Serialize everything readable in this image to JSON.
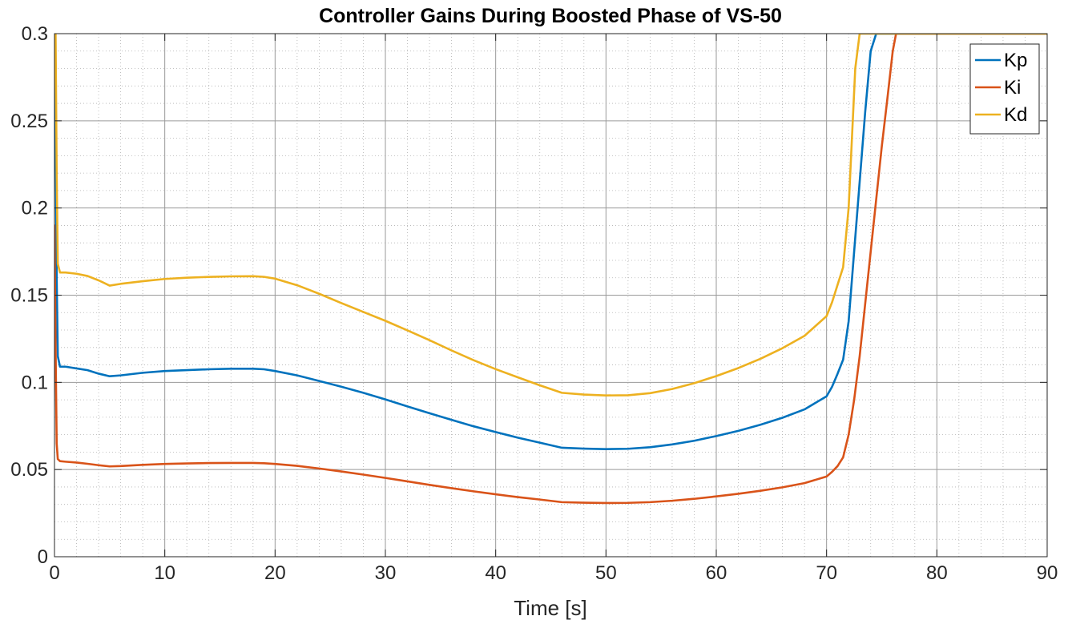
{
  "chart_data": {
    "type": "line",
    "title": "Controller Gains During Boosted Phase of VS-50",
    "xlabel": "Time [s]",
    "ylabel": "",
    "xlim": [
      0,
      90
    ],
    "ylim": [
      0,
      0.3
    ],
    "xticks": [
      0,
      10,
      20,
      30,
      40,
      50,
      60,
      70,
      80,
      90
    ],
    "xtick_labels": [
      "0",
      "10",
      "20",
      "30",
      "40",
      "50",
      "60",
      "70",
      "80",
      "90"
    ],
    "yticks": [
      0,
      0.05,
      0.1,
      0.15,
      0.2,
      0.25,
      0.3
    ],
    "ytick_labels": [
      "0",
      "0.05",
      "0.1",
      "0.15",
      "0.2",
      "0.25",
      "0.3"
    ],
    "grid": "major and minor",
    "legend_position": "top-right",
    "series": [
      {
        "name": "Kp",
        "color": "#0072BD",
        "x": [
          0,
          0.1,
          0.2,
          0.3,
          0.5,
          1,
          2,
          3,
          4,
          5,
          6,
          8,
          10,
          12,
          14,
          16,
          18,
          19,
          20,
          22,
          24,
          26,
          28,
          30,
          32,
          34,
          36,
          38,
          40,
          42,
          44,
          46,
          48,
          50,
          52,
          54,
          56,
          58,
          60,
          62,
          64,
          66,
          68,
          70,
          70.5,
          71,
          71.5,
          72,
          72.5,
          73,
          73.5,
          74,
          74.5,
          75,
          76,
          80,
          90
        ],
        "y": [
          0.3,
          0.25,
          0.16,
          0.115,
          0.109,
          0.109,
          0.108,
          0.107,
          0.105,
          0.1035,
          0.104,
          0.1055,
          0.1065,
          0.107,
          0.1075,
          0.1078,
          0.1078,
          0.1075,
          0.1065,
          0.104,
          0.1008,
          0.0975,
          0.094,
          0.0902,
          0.0862,
          0.0823,
          0.0785,
          0.0748,
          0.0715,
          0.0683,
          0.0654,
          0.0625,
          0.062,
          0.0617,
          0.0619,
          0.0628,
          0.0644,
          0.0665,
          0.0692,
          0.0722,
          0.0757,
          0.0797,
          0.0845,
          0.092,
          0.0975,
          0.105,
          0.113,
          0.135,
          0.175,
          0.215,
          0.255,
          0.29,
          0.3,
          0.3,
          0.3,
          0.3,
          0.3
        ]
      },
      {
        "name": "Ki",
        "color": "#D95319",
        "x": [
          0,
          0.1,
          0.2,
          0.3,
          0.5,
          1,
          2,
          3,
          4,
          5,
          6,
          8,
          10,
          12,
          14,
          16,
          18,
          19,
          20,
          22,
          24,
          26,
          28,
          30,
          32,
          34,
          36,
          38,
          40,
          42,
          44,
          46,
          48,
          50,
          52,
          54,
          56,
          58,
          60,
          62,
          64,
          66,
          68,
          70,
          70.5,
          71,
          71.5,
          72,
          72.5,
          73,
          73.5,
          74,
          74.5,
          75,
          75.5,
          76,
          76.3,
          80,
          90
        ],
        "y": [
          0.19,
          0.12,
          0.065,
          0.056,
          0.0548,
          0.0545,
          0.054,
          0.0533,
          0.0525,
          0.0518,
          0.052,
          0.0527,
          0.0532,
          0.0535,
          0.0537,
          0.0538,
          0.0538,
          0.0536,
          0.0532,
          0.0521,
          0.0506,
          0.0489,
          0.0471,
          0.0452,
          0.0432,
          0.0412,
          0.0393,
          0.0375,
          0.0358,
          0.0342,
          0.0328,
          0.0313,
          0.031,
          0.0308,
          0.0309,
          0.0313,
          0.0321,
          0.0332,
          0.0346,
          0.0361,
          0.0378,
          0.0398,
          0.0422,
          0.046,
          0.0487,
          0.052,
          0.057,
          0.07,
          0.09,
          0.115,
          0.145,
          0.175,
          0.205,
          0.235,
          0.262,
          0.29,
          0.3,
          0.3,
          0.3
        ]
      },
      {
        "name": "Kd",
        "color": "#EDB120",
        "x": [
          0,
          0.1,
          0.2,
          0.3,
          0.5,
          1,
          2,
          3,
          4,
          5,
          6,
          8,
          10,
          12,
          14,
          16,
          18,
          19,
          20,
          22,
          24,
          26,
          28,
          30,
          32,
          34,
          36,
          38,
          40,
          42,
          44,
          46,
          48,
          50,
          52,
          54,
          56,
          58,
          60,
          62,
          64,
          66,
          68,
          70,
          70.5,
          71,
          71.5,
          72,
          72.3,
          72.6,
          73,
          80,
          90
        ],
        "y": [
          0.3,
          0.3,
          0.22,
          0.168,
          0.163,
          0.163,
          0.1623,
          0.161,
          0.1585,
          0.1555,
          0.1565,
          0.158,
          0.1593,
          0.16,
          0.1605,
          0.1608,
          0.1609,
          0.1605,
          0.1595,
          0.1557,
          0.1508,
          0.1455,
          0.1404,
          0.1353,
          0.1298,
          0.1242,
          0.1183,
          0.1127,
          0.1076,
          0.1029,
          0.0983,
          0.094,
          0.093,
          0.0925,
          0.0926,
          0.0938,
          0.0962,
          0.0995,
          0.1036,
          0.1082,
          0.1135,
          0.1196,
          0.1267,
          0.138,
          0.146,
          0.156,
          0.166,
          0.2,
          0.24,
          0.28,
          0.3,
          0.3,
          0.3
        ]
      }
    ]
  }
}
